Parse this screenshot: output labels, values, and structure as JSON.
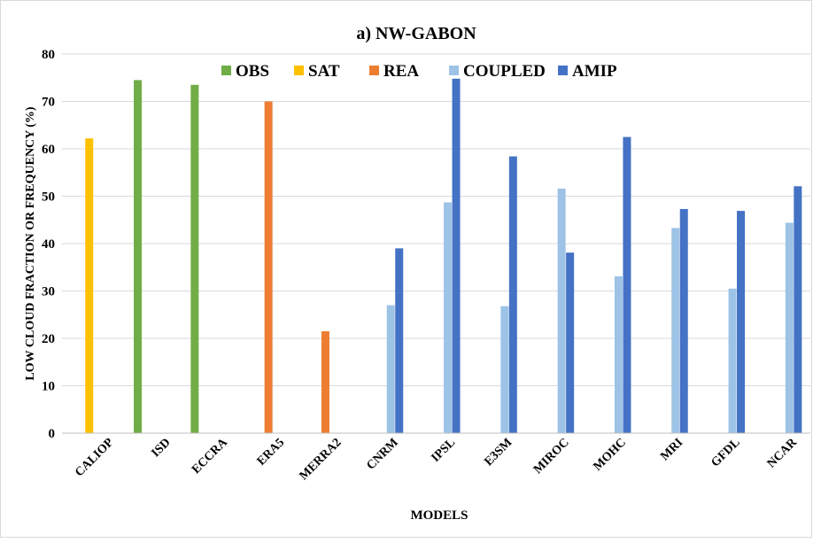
{
  "chart_data": {
    "type": "bar",
    "title": "a) NW-GABON",
    "x_label": "MODELS",
    "y_label": "LOW CLOUD FRACTION OR FREQUENCY (%)",
    "categories": [
      "CALIOP",
      "ISD",
      "ECCRA",
      "ERA5",
      "MERRA2",
      "CNRM",
      "IPSL",
      "E3SM",
      "MIROC",
      "MOHC",
      "MRI",
      "GFDL",
      "NCAR"
    ],
    "series": [
      {
        "name": "OBS",
        "color": "#70ad47",
        "values": [
          null,
          74.5,
          73.5,
          null,
          null,
          null,
          null,
          null,
          null,
          null,
          null,
          null,
          null
        ]
      },
      {
        "name": "SAT",
        "color": "#ffc000",
        "values": [
          62.2,
          null,
          null,
          null,
          null,
          null,
          null,
          null,
          null,
          null,
          null,
          null,
          null
        ]
      },
      {
        "name": "REA",
        "color": "#ed7d31",
        "values": [
          null,
          null,
          null,
          70,
          21.5,
          null,
          null,
          null,
          null,
          null,
          null,
          null,
          null
        ]
      },
      {
        "name": "COUPLED",
        "color": "#9dc3e6",
        "values": [
          null,
          null,
          null,
          null,
          null,
          27,
          48.7,
          26.8,
          51.6,
          33.1,
          43.3,
          30.5,
          44.4
        ]
      },
      {
        "name": "AMIP",
        "color": "#4472c4",
        "values": [
          null,
          null,
          null,
          null,
          null,
          39,
          74.8,
          58.4,
          38.1,
          62.5,
          47.3,
          46.9,
          52.1
        ]
      }
    ],
    "ylim": [
      0,
      80
    ],
    "yticks": [
      0,
      10,
      20,
      30,
      40,
      50,
      60,
      70,
      80
    ],
    "grid": true,
    "legend": "top"
  }
}
